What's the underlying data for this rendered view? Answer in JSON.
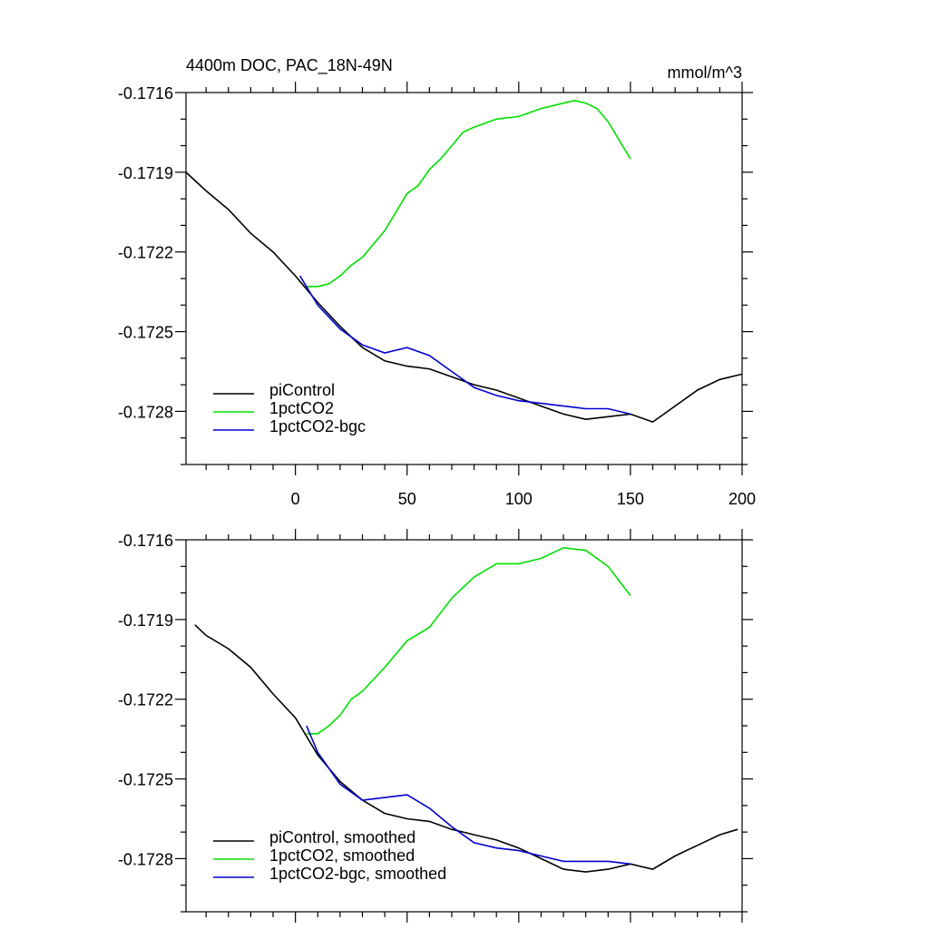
{
  "chart_data": [
    {
      "type": "line",
      "title": "4400m DOC, PAC_18N-49N",
      "units": "mmol/m^3",
      "xlim": [
        -49,
        200
      ],
      "xticks": [
        0,
        50,
        100,
        150,
        200
      ],
      "ylim": [
        -0.173,
        -0.1716
      ],
      "yticks": [
        -0.1716,
        -0.1719,
        -0.1722,
        -0.1725,
        -0.1728
      ],
      "legend": "lower left",
      "series": [
        {
          "name": "piControl",
          "color": "#000000",
          "x": [
            -49,
            -40,
            -30,
            -20,
            -10,
            0,
            10,
            20,
            30,
            40,
            50,
            60,
            70,
            80,
            90,
            100,
            110,
            120,
            130,
            140,
            150,
            160,
            170,
            180,
            190,
            200
          ],
          "values": [
            -0.1719,
            -0.17197,
            -0.17204,
            -0.17213,
            -0.1722,
            -0.17229,
            -0.17239,
            -0.17248,
            -0.17256,
            -0.17261,
            -0.17263,
            -0.17264,
            -0.17267,
            -0.1727,
            -0.17272,
            -0.17275,
            -0.17278,
            -0.17281,
            -0.17283,
            -0.17282,
            -0.17281,
            -0.17284,
            -0.17278,
            -0.17272,
            -0.17268,
            -0.17266
          ]
        },
        {
          "name": "1pctCO2",
          "color": "#00e000",
          "x": [
            5,
            10,
            15,
            20,
            25,
            30,
            35,
            40,
            45,
            50,
            55,
            60,
            65,
            70,
            75,
            80,
            90,
            100,
            110,
            120,
            125,
            130,
            135,
            140,
            145,
            150
          ],
          "values": [
            -0.17233,
            -0.17233,
            -0.17232,
            -0.17229,
            -0.17225,
            -0.17222,
            -0.17217,
            -0.17212,
            -0.17205,
            -0.17198,
            -0.17195,
            -0.17189,
            -0.17185,
            -0.1718,
            -0.17175,
            -0.17173,
            -0.1717,
            -0.17169,
            -0.17166,
            -0.17164,
            -0.17163,
            -0.17164,
            -0.17166,
            -0.17171,
            -0.17178,
            -0.17185
          ]
        },
        {
          "name": "1pctCO2-bgc",
          "color": "#0000d0",
          "x": [
            2,
            10,
            20,
            30,
            40,
            50,
            60,
            70,
            80,
            90,
            100,
            110,
            120,
            130,
            140,
            150
          ],
          "values": [
            -0.17229,
            -0.1724,
            -0.17249,
            -0.17255,
            -0.17258,
            -0.17256,
            -0.17259,
            -0.17265,
            -0.17271,
            -0.17274,
            -0.17276,
            -0.17277,
            -0.17278,
            -0.17279,
            -0.17279,
            -0.17281
          ]
        }
      ]
    },
    {
      "type": "line",
      "xlim": [
        -49,
        200
      ],
      "ylim": [
        -0.173,
        -0.1716
      ],
      "yticks": [
        -0.1716,
        -0.1719,
        -0.1722,
        -0.1725,
        -0.1728
      ],
      "legend": "lower left",
      "series": [
        {
          "name": "piControl, smoothed",
          "color": "#000000",
          "x": [
            -45,
            -40,
            -30,
            -20,
            -10,
            0,
            10,
            20,
            30,
            40,
            50,
            60,
            70,
            80,
            90,
            100,
            110,
            120,
            130,
            140,
            150,
            160,
            170,
            180,
            190,
            198
          ],
          "values": [
            -0.17192,
            -0.17196,
            -0.17201,
            -0.17208,
            -0.17218,
            -0.17227,
            -0.17241,
            -0.17251,
            -0.17258,
            -0.17263,
            -0.17265,
            -0.17266,
            -0.17269,
            -0.17271,
            -0.17273,
            -0.17276,
            -0.1728,
            -0.17284,
            -0.17285,
            -0.17284,
            -0.17282,
            -0.17284,
            -0.17279,
            -0.17275,
            -0.17271,
            -0.17269
          ]
        },
        {
          "name": "1pctCO2, smoothed",
          "color": "#00e000",
          "x": [
            5,
            10,
            15,
            20,
            25,
            30,
            40,
            50,
            60,
            70,
            80,
            90,
            100,
            110,
            120,
            130,
            140,
            150
          ],
          "values": [
            -0.17233,
            -0.17233,
            -0.1723,
            -0.17226,
            -0.1722,
            -0.17217,
            -0.17208,
            -0.17198,
            -0.17193,
            -0.17182,
            -0.17174,
            -0.17169,
            -0.17169,
            -0.17167,
            -0.17163,
            -0.17164,
            -0.1717,
            -0.17181
          ]
        },
        {
          "name": "1pctCO2-bgc, smoothed",
          "color": "#0000d0",
          "x": [
            5,
            10,
            20,
            30,
            40,
            50,
            60,
            70,
            80,
            90,
            100,
            110,
            120,
            130,
            140,
            150
          ],
          "values": [
            -0.1723,
            -0.1724,
            -0.17252,
            -0.17258,
            -0.17257,
            -0.17256,
            -0.17261,
            -0.17268,
            -0.17274,
            -0.17276,
            -0.17277,
            -0.17279,
            -0.17281,
            -0.17281,
            -0.17281,
            -0.17282
          ]
        }
      ]
    }
  ]
}
